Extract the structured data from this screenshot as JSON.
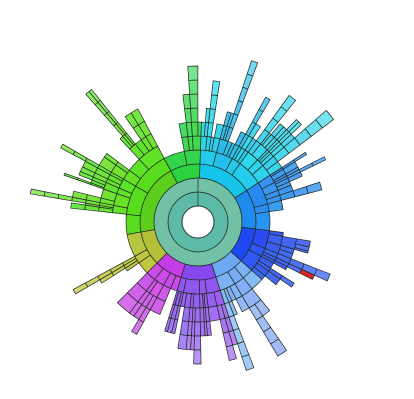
{
  "chart_data": {
    "type": "sunburst",
    "title": "",
    "legend": "none",
    "center_hole": true,
    "depth_levels": 12,
    "hierarchy_groups": [
      {
        "hue": "lime-green",
        "color": "#5fdc1e",
        "span_deg": 72,
        "max_depth": 12
      },
      {
        "hue": "green",
        "color": "#35d548",
        "span_deg": 30,
        "max_depth": 11
      },
      {
        "hue": "cyan",
        "color": "#23c6ea",
        "span_deg": 55,
        "max_depth": 11
      },
      {
        "hue": "azure",
        "color": "#2a8ff0",
        "span_deg": 40,
        "max_depth": 11
      },
      {
        "hue": "blue",
        "color": "#2c52f2",
        "span_deg": 35,
        "max_depth": 11
      },
      {
        "hue": "light-blue",
        "color": "#7ab0f4",
        "span_deg": 30,
        "max_depth": 10
      },
      {
        "hue": "violet",
        "color": "#8f54f0",
        "span_deg": 35,
        "max_depth": 9
      },
      {
        "hue": "magenta",
        "color": "#c84ae8",
        "span_deg": 28,
        "max_depth": 8
      },
      {
        "hue": "olive-yellow",
        "color": "#b8c640",
        "span_deg": 35,
        "max_depth": 10
      }
    ],
    "leaf_highlight_color": "#d8262a"
  }
}
